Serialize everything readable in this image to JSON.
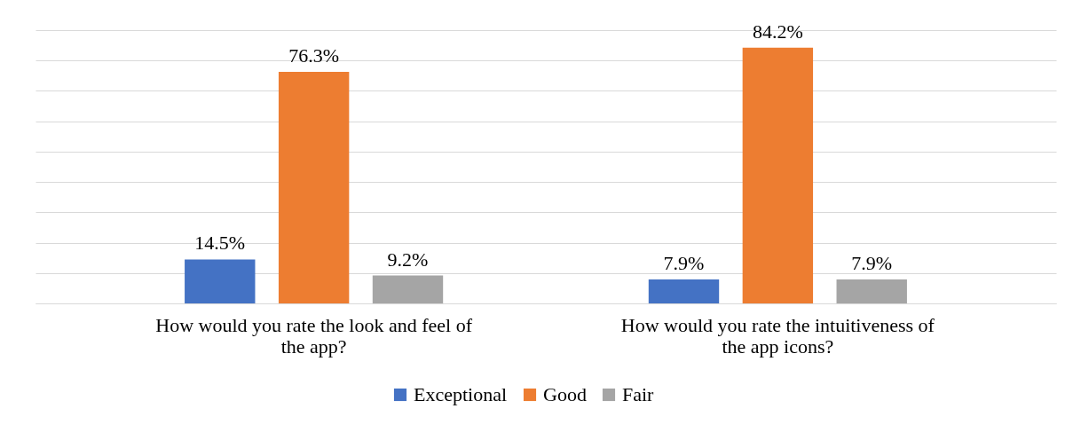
{
  "chart_data": {
    "type": "bar",
    "categories": [
      "How would you rate the look and feel of the app?",
      "How would you rate the intuitiveness of the app icons?"
    ],
    "series": [
      {
        "name": "Exceptional",
        "color": "#4472c4",
        "values": [
          14.5,
          7.9
        ],
        "value_labels": [
          "14.5%",
          "7.9%"
        ]
      },
      {
        "name": "Good",
        "color": "#ed7d31",
        "values": [
          76.3,
          84.2
        ],
        "value_labels": [
          "76.3%",
          "84.2%"
        ]
      },
      {
        "name": "Fair",
        "color": "#a5a5a5",
        "values": [
          9.2,
          7.9
        ],
        "value_labels": [
          "9.2%",
          "7.9%"
        ]
      }
    ],
    "ylim": [
      0,
      90
    ],
    "yticks": [
      {
        "value": 0,
        "label": null
      },
      {
        "value": 10,
        "label": null
      },
      {
        "value": 20,
        "label": null
      },
      {
        "value": 30,
        "label": null
      },
      {
        "value": 40,
        "label": null
      },
      {
        "value": 50,
        "label": null
      },
      {
        "value": 60,
        "label": null
      },
      {
        "value": 70,
        "label": null
      },
      {
        "value": 80,
        "label": null
      },
      {
        "value": 90,
        "label": null
      }
    ],
    "grid": "y",
    "tick_labels": "x",
    "legend": "bottom"
  }
}
